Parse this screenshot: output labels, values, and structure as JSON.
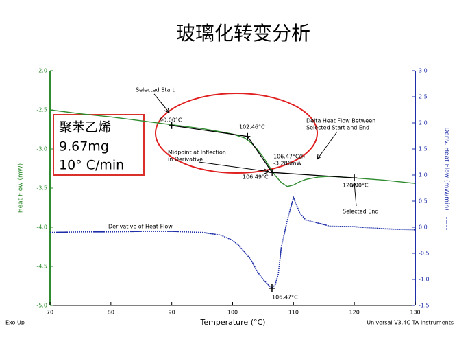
{
  "chart_data": {
    "type": "line",
    "title": "玻璃化转变分析",
    "x_label": "Temperature (°C)",
    "y_label": "Heat Flow (mW)",
    "y2_label": "Deriv. Heat Flow (mW/min)",
    "xlim": [
      70,
      130
    ],
    "xticks": [
      70,
      80,
      90,
      100,
      110,
      120,
      130
    ],
    "ylim": [
      -5.0,
      -2.0
    ],
    "yticks": [
      {
        "value": -5.0,
        "label": "-5.0"
      },
      -4.5,
      {
        "value": -4.0,
        "label": "-4.0"
      },
      -3.5,
      {
        "value": -3.0,
        "label": "-3.0"
      },
      -2.5,
      {
        "value": -2.0,
        "label": "-2.0"
      }
    ],
    "y2lim": [
      -1.5,
      3.0
    ],
    "y2ticks": [
      -1.5,
      {
        "value": -1.0,
        "label": "-1.0"
      },
      -0.5,
      {
        "value": 0.0,
        "label": "0.0"
      },
      0.5,
      {
        "value": 1.0,
        "label": "1.0"
      },
      1.5,
      {
        "value": 2.0,
        "label": "2.0"
      },
      2.5,
      {
        "value": 3.0,
        "label": "3.0"
      }
    ],
    "left_axis_color": "#2e8b2e",
    "right_axis_color": "#1f2fa8",
    "series": [
      {
        "color": "#2e8b2e",
        "axis": "y",
        "x": [
          70,
          75,
          80,
          85,
          90,
          95,
          98,
          100,
          102,
          103,
          104,
          105,
          106,
          107,
          108,
          109,
          110,
          111,
          112,
          114,
          116,
          120,
          125,
          130
        ],
        "values": [
          -2.5,
          -2.55,
          -2.59,
          -2.64,
          -2.69,
          -2.74,
          -2.78,
          -2.81,
          -2.86,
          -2.92,
          -3.0,
          -3.1,
          -3.22,
          -3.34,
          -3.43,
          -3.48,
          -3.46,
          -3.42,
          -3.39,
          -3.36,
          -3.35,
          -3.37,
          -3.4,
          -3.44
        ]
      },
      {
        "color": "#1f2fa8",
        "axis": "y2",
        "dashed": true,
        "x": [
          70,
          75,
          80,
          85,
          90,
          95,
          98,
          100,
          101,
          102,
          103,
          104,
          105,
          106,
          106.47,
          107,
          107.5,
          108,
          109,
          110,
          111,
          112,
          114,
          116,
          120,
          125,
          130
        ],
        "values": [
          -0.1,
          -0.09,
          -0.09,
          -0.08,
          -0.08,
          -0.1,
          -0.15,
          -0.25,
          -0.35,
          -0.48,
          -0.62,
          -0.84,
          -1.0,
          -1.12,
          -1.17,
          -1.1,
          -0.9,
          -0.38,
          0.14,
          0.57,
          0.28,
          0.14,
          0.08,
          0.02,
          0.01,
          -0.03,
          -0.05
        ]
      }
    ],
    "tangent_points": {
      "x": [
        90.0,
        102.46,
        106.49,
        120.0
      ],
      "values": [
        -2.7,
        -2.84,
        -3.3,
        -3.37
      ]
    },
    "derivative_minimum": {
      "x": 106.47,
      "value": -1.17
    },
    "annotations": {
      "selected_start": "Selected Start",
      "start_temp": "90.00°C",
      "onset_temp": "102.46°C",
      "delta_line1": "Delta Heat Flow Between",
      "delta_line2": "Selected Start and End",
      "midpoint_line1": "Midpoint at Inflection",
      "midpoint_line2": "in Derivative",
      "inflection_temp": "106.47°C(I)",
      "inflection_value": "-3.286mW",
      "end_onset_temp": "106.49°C",
      "end_temp": "120.00°C",
      "selected_end": "Selected End",
      "derivative_label": "Derivative of Heat Flow",
      "derivative_min_temp": "106.47°C",
      "exo": "Exo Up",
      "instrument": "Universal V3.4C TA Instruments"
    },
    "sample_box": [
      "聚苯乙烯",
      "9.67mg",
      "10° C/min"
    ]
  }
}
